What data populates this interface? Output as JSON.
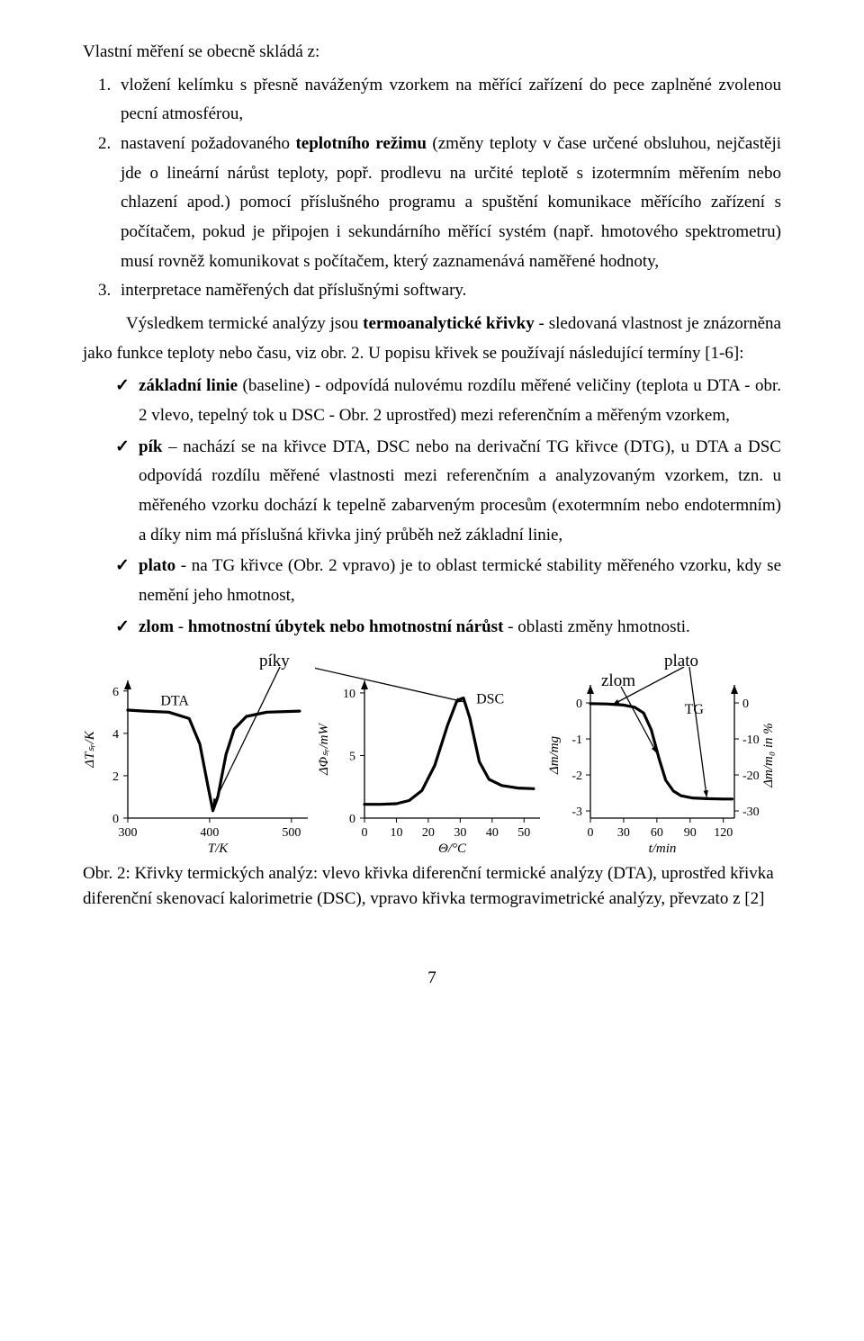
{
  "text": {
    "intro": "Vlastní měření se obecně skládá z:",
    "item1": "vložení kelímku s přesně naváženým vzorkem na měřící zařízení do pece zaplněné zvolenou pecní atmosférou,",
    "item2_1": "nastavení požadovaného ",
    "item2_b1": "teplotního režimu",
    "item2_2": " (změny teploty v čase určené obsluhou, nejčastěji jde o lineární nárůst teploty, popř. prodlevu na určité teplotě s izotermním měřením nebo chlazení apod.) pomocí příslušného programu a spuštění komunikace měřícího zařízení s počítačem, pokud je připojen i sekundárního měřící systém (např. hmotového spektrometru) musí rovněž komunikovat s počítačem, který zaznamenává naměřené hodnoty,",
    "item3": "interpretace naměřených dat příslušnými softwary.",
    "para2_1": "Výsledkem termické analýzy jsou ",
    "para2_b1": "termoanalytické křivky",
    "para2_2": " - sledovaná vlastnost je znázorněna jako funkce teploty nebo času, viz obr. 2. U popisu křivek se používají následující termíny [1-6]:",
    "bul1_b": "základní linie",
    "bul1": " (baseline) - odpovídá nulovému rozdílu měřené veličiny (teplota u DTA - obr. 2 vlevo, tepelný tok u DSC - Obr. 2 uprostřed) mezi referenčním a měřeným vzorkem,",
    "bul2_b": "pík",
    "bul2": " – nachází se na křivce DTA, DSC nebo na derivační TG křivce (DTG), u DTA a DSC odpovídá rozdílu měřené vlastnosti mezi referenčním a analyzovaným vzorkem, tzn. u měřeného vzorku dochází k tepelně zabarveným procesům (exotermním nebo endotermním) a díky nim má příslušná křivka jiný průběh než základní linie,",
    "bul3_b": "plato",
    "bul3": " - na TG křivce (Obr. 2 vpravo) je to oblast termické stability měřeného vzorku, kdy se nemění jeho hmotnost,",
    "bul4_b": "zlom",
    "bul4_1": " - ",
    "bul4_b2": "hmotnostní úbytek nebo hmotnostní nárůst",
    "bul4_2": " - oblasti změny hmotnosti.",
    "annot_piky": "píky",
    "annot_plato": "plato",
    "annot_zlom": "zlom",
    "caption": "Obr. 2: Křivky termických analýz: vlevo křivka diferenční termické analýzy (DTA), uprostřed křivka diferenční skenovací kalorimetrie (DSC), vpravo křivka termogravimetrické analýzy, převzato z [2]",
    "pagenum": "7"
  },
  "figure": {
    "background_color": "#ffffff",
    "axis_color": "#000000",
    "curve_color": "#000000",
    "curve_width": 3.2,
    "tick_fontsize": 14,
    "series_fontsize": 16,
    "dta": {
      "type": "line",
      "series_label": "DTA",
      "x_axis_label": "T/K",
      "y_axis_label": "ΔTₛᵣ/K",
      "xlim": [
        300,
        520
      ],
      "ylim": [
        0,
        6.5
      ],
      "x_ticks": [
        300,
        400,
        500
      ],
      "y_ticks": [
        0,
        2,
        4,
        6
      ],
      "points": [
        [
          300,
          5.1
        ],
        [
          320,
          5.05
        ],
        [
          350,
          5.0
        ],
        [
          375,
          4.7
        ],
        [
          388,
          3.5
        ],
        [
          398,
          1.5
        ],
        [
          404,
          0.35
        ],
        [
          410,
          1.0
        ],
        [
          420,
          3.0
        ],
        [
          430,
          4.2
        ],
        [
          445,
          4.8
        ],
        [
          470,
          5.0
        ],
        [
          510,
          5.05
        ]
      ]
    },
    "dsc": {
      "type": "line",
      "series_label": "DSC",
      "x_axis_label": "Θ/°C",
      "y_axis_label": "ΔΦₛᵣ/mW",
      "xlim": [
        0,
        55
      ],
      "ylim": [
        0,
        11
      ],
      "x_ticks": [
        0,
        10,
        20,
        30,
        40,
        50
      ],
      "y_ticks": [
        0,
        5,
        10
      ],
      "points": [
        [
          0,
          1.1
        ],
        [
          5,
          1.1
        ],
        [
          10,
          1.15
        ],
        [
          14,
          1.4
        ],
        [
          18,
          2.2
        ],
        [
          22,
          4.2
        ],
        [
          26,
          7.4
        ],
        [
          29,
          9.4
        ],
        [
          31,
          9.6
        ],
        [
          33,
          8.0
        ],
        [
          36,
          4.5
        ],
        [
          39,
          3.1
        ],
        [
          43,
          2.6
        ],
        [
          48,
          2.4
        ],
        [
          53,
          2.35
        ]
      ]
    },
    "tg": {
      "type": "line",
      "series_label": "TG",
      "x_axis_label": "t/min",
      "y_left_label": "Δm/mg",
      "y_right_label": "Δm/m₀ in %",
      "xlim": [
        0,
        130
      ],
      "ylim_left": [
        -3.2,
        0.3
      ],
      "ylim_right": [
        -32,
        3
      ],
      "x_ticks": [
        0,
        30,
        60,
        90,
        120
      ],
      "y_left_ticks": [
        0,
        -1,
        -2,
        -3
      ],
      "y_right_ticks": [
        0,
        -10,
        -20,
        -30
      ],
      "points": [
        [
          0,
          -0.02
        ],
        [
          15,
          -0.03
        ],
        [
          30,
          -0.06
        ],
        [
          40,
          -0.12
        ],
        [
          48,
          -0.28
        ],
        [
          55,
          -0.75
        ],
        [
          62,
          -1.55
        ],
        [
          68,
          -2.15
        ],
        [
          75,
          -2.45
        ],
        [
          82,
          -2.58
        ],
        [
          92,
          -2.64
        ],
        [
          105,
          -2.66
        ],
        [
          120,
          -2.67
        ],
        [
          128,
          -2.67
        ]
      ]
    }
  }
}
